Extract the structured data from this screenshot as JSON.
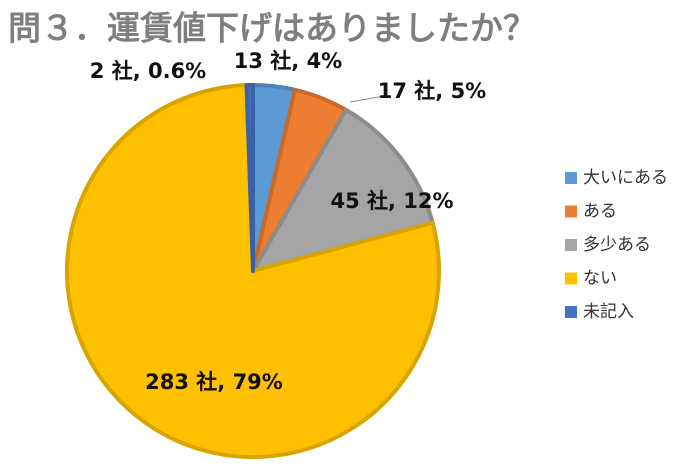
{
  "chart_data": {
    "type": "pie",
    "title": "問３．運賃値下げはありましたか？",
    "categories": [
      "大いにある",
      "ある",
      "多少ある",
      "ない",
      "未記入"
    ],
    "values": [
      13,
      17,
      45,
      283,
      2
    ],
    "value_labels": [
      "13 社, 4%",
      "17 社, 5%",
      "45 社, 12%",
      "283 社, 79%",
      "2 社, 0.6%"
    ],
    "colors": [
      "#5b9bd5",
      "#ed7d31",
      "#a5a5a5",
      "#ffc000",
      "#4472c4"
    ],
    "legend": "right"
  }
}
